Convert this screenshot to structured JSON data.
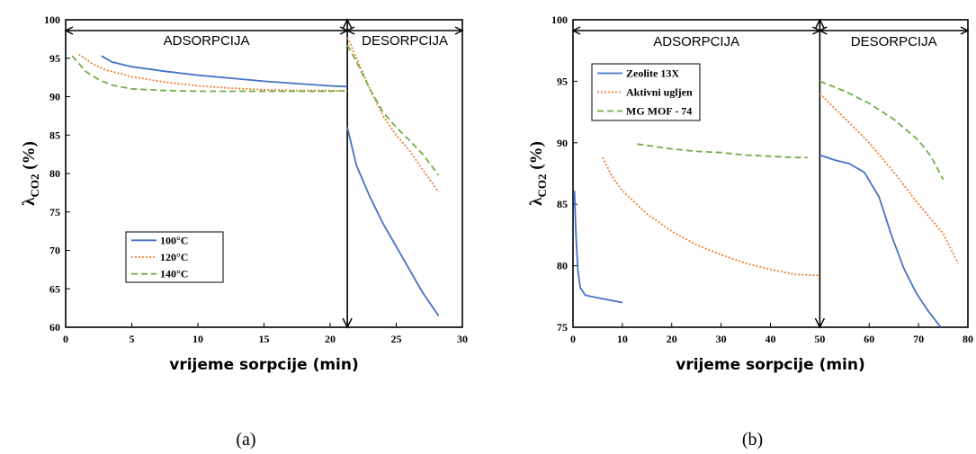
{
  "chart_data": [
    {
      "type": "line",
      "panel_label": "(a)",
      "xlabel": "vrijeme sorpcije (min)",
      "ylabel": "λ_CO2 (%)",
      "xlim": [
        0,
        30
      ],
      "ylim": [
        60,
        100
      ],
      "x_ticks": [
        0,
        5,
        10,
        15,
        20,
        25,
        30
      ],
      "y_ticks": [
        60,
        65,
        70,
        75,
        80,
        85,
        90,
        95,
        100
      ],
      "regions": [
        {
          "label": "ADSORPCIJA",
          "from": 0,
          "to": 21.3
        },
        {
          "label": "DESORPCIJA",
          "from": 21.3,
          "to": 30
        }
      ],
      "boundary_x": 21.3,
      "legend_position": "bottom-left",
      "series": [
        {
          "name": "100°C",
          "color": "#4472C4",
          "dash": "",
          "segments": [
            [
              [
                2.7,
                95.3
              ],
              [
                3.5,
                94.5
              ],
              [
                5,
                93.9
              ],
              [
                7.5,
                93.3
              ],
              [
                10,
                92.8
              ],
              [
                12.5,
                92.4
              ],
              [
                15,
                92.0
              ],
              [
                17.5,
                91.7
              ],
              [
                20,
                91.4
              ],
              [
                21.3,
                91.3
              ]
            ],
            [
              [
                21.3,
                86.0
              ],
              [
                22,
                81
              ],
              [
                23,
                77
              ],
              [
                24,
                73.5
              ],
              [
                25,
                70.5
              ],
              [
                26,
                67.5
              ],
              [
                27,
                64.5
              ],
              [
                28.2,
                61.5
              ]
            ]
          ]
        },
        {
          "name": "120°C",
          "color": "#ED7D31",
          "dash": "2 2",
          "segments": [
            [
              [
                1,
                95.5
              ],
              [
                2,
                94.3
              ],
              [
                3,
                93.5
              ],
              [
                5,
                92.6
              ],
              [
                7.5,
                91.9
              ],
              [
                10,
                91.4
              ],
              [
                12.5,
                91.1
              ],
              [
                15,
                90.9
              ],
              [
                17.5,
                90.8
              ],
              [
                20,
                90.8
              ],
              [
                21.3,
                90.7
              ]
            ],
            [
              [
                21.3,
                97.7
              ],
              [
                22,
                95
              ],
              [
                23,
                91
              ],
              [
                24,
                87.5
              ],
              [
                25,
                85
              ],
              [
                26,
                83
              ],
              [
                27,
                80.5
              ],
              [
                28.2,
                77.6
              ]
            ]
          ]
        },
        {
          "name": "140°C",
          "color": "#70AD47",
          "dash": "7 4",
          "segments": [
            [
              [
                0.5,
                95.3
              ],
              [
                1,
                94.3
              ],
              [
                1.5,
                93.3
              ],
              [
                2.5,
                92.2
              ],
              [
                3.5,
                91.5
              ],
              [
                5,
                91.0
              ],
              [
                7.5,
                90.8
              ],
              [
                10,
                90.7
              ],
              [
                12.5,
                90.7
              ],
              [
                15,
                90.7
              ],
              [
                17.5,
                90.7
              ],
              [
                20,
                90.7
              ],
              [
                21.3,
                90.8
              ]
            ],
            [
              [
                21.3,
                96.7
              ],
              [
                22,
                94.5
              ],
              [
                23,
                91
              ],
              [
                24,
                88
              ],
              [
                25,
                86
              ],
              [
                26,
                84.3
              ],
              [
                27,
                82.5
              ],
              [
                28.2,
                79.8
              ]
            ]
          ]
        }
      ]
    },
    {
      "type": "line",
      "panel_label": "(b)",
      "xlabel": "vrijeme sorpcije (min)",
      "ylabel": "λ_CO2 (%)",
      "xlim": [
        0,
        80
      ],
      "ylim": [
        75,
        100
      ],
      "x_ticks": [
        0,
        10,
        20,
        30,
        40,
        50,
        60,
        70,
        80
      ],
      "y_ticks": [
        75,
        80,
        85,
        90,
        95,
        100
      ],
      "regions": [
        {
          "label": "ADSORPCIJA",
          "from": 0,
          "to": 50
        },
        {
          "label": "DESORPCIJA",
          "from": 50,
          "to": 80
        }
      ],
      "boundary_x": 50,
      "legend_position": "top-left",
      "series": [
        {
          "name": "Zeolite 13X",
          "color": "#4472C4",
          "dash": "",
          "segments": [
            [
              [
                0.3,
                86.1
              ],
              [
                0.6,
                82.5
              ],
              [
                1,
                79.5
              ],
              [
                1.5,
                78.2
              ],
              [
                2.5,
                77.6
              ],
              [
                5,
                77.4
              ],
              [
                7.5,
                77.2
              ],
              [
                10,
                77.0
              ]
            ],
            [
              [
                50,
                89.0
              ],
              [
                53,
                88.6
              ],
              [
                56,
                88.3
              ],
              [
                59,
                87.6
              ],
              [
                62,
                85.6
              ],
              [
                64.5,
                82.5
              ],
              [
                67,
                79.8
              ],
              [
                69.5,
                77.8
              ],
              [
                72,
                76.3
              ],
              [
                74.5,
                75.0
              ]
            ]
          ]
        },
        {
          "name": "Aktivni ugljen",
          "color": "#ED7D31",
          "dash": "2 2",
          "segments": [
            [
              [
                6,
                88.8
              ],
              [
                8,
                87.2
              ],
              [
                10,
                86.1
              ],
              [
                15,
                84.2
              ],
              [
                20,
                82.8
              ],
              [
                25,
                81.7
              ],
              [
                30,
                80.9
              ],
              [
                35,
                80.2
              ],
              [
                40,
                79.7
              ],
              [
                45,
                79.3
              ],
              [
                50,
                79.2
              ]
            ],
            [
              [
                50,
                94.0
              ],
              [
                52.5,
                93.0
              ],
              [
                55,
                92.0
              ],
              [
                60,
                90.0
              ],
              [
                65,
                87.6
              ],
              [
                70,
                85.0
              ],
              [
                75,
                82.6
              ],
              [
                78,
                80.2
              ]
            ]
          ]
        },
        {
          "name": "MG MOF - 74",
          "color": "#70AD47",
          "dash": "7 4",
          "segments": [
            [
              [
                13,
                89.9
              ],
              [
                20,
                89.5
              ],
              [
                25,
                89.3
              ],
              [
                30,
                89.2
              ],
              [
                35,
                89.0
              ],
              [
                40,
                88.9
              ],
              [
                45,
                88.8
              ],
              [
                47.5,
                88.8
              ]
            ],
            [
              [
                50,
                95.0
              ],
              [
                55,
                94.2
              ],
              [
                60,
                93.2
              ],
              [
                65,
                91.9
              ],
              [
                70,
                90.2
              ],
              [
                72.5,
                88.9
              ],
              [
                75,
                87.0
              ]
            ]
          ]
        }
      ]
    }
  ]
}
